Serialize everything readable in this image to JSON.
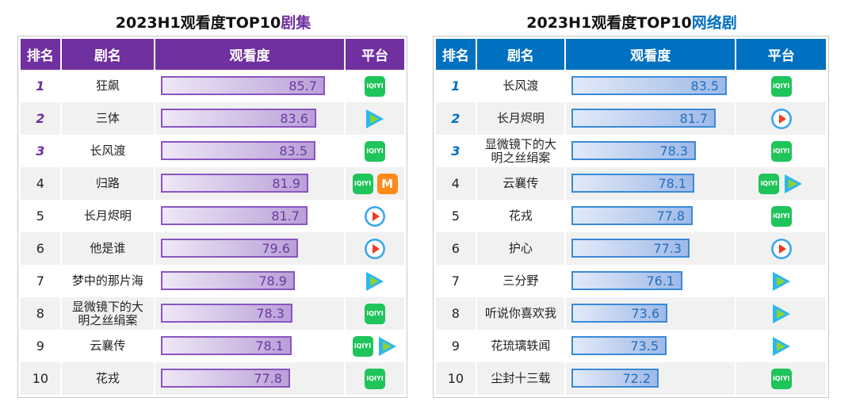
{
  "chart_data": [
    {
      "type": "table",
      "title_prefix": "2023H1观看度TOP10",
      "title_highlight": "剧集",
      "accent": "#7030a0",
      "headers": [
        "排名",
        "剧名",
        "观看度",
        "平台"
      ],
      "rows": [
        {
          "rank": "1",
          "name": "狂飙",
          "score": 85.7,
          "platforms": [
            "iqiyi"
          ]
        },
        {
          "rank": "2",
          "name": "三体",
          "score": 83.6,
          "platforms": [
            "tencent"
          ]
        },
        {
          "rank": "3",
          "name": "长风渡",
          "score": 83.5,
          "platforms": [
            "iqiyi"
          ]
        },
        {
          "rank": "4",
          "name": "归路",
          "score": 81.9,
          "platforms": [
            "iqiyi",
            "mango"
          ]
        },
        {
          "rank": "5",
          "name": "长月烬明",
          "score": 81.7,
          "platforms": [
            "youku"
          ]
        },
        {
          "rank": "6",
          "name": "他是谁",
          "score": 79.6,
          "platforms": [
            "youku"
          ]
        },
        {
          "rank": "7",
          "name": "梦中的那片海",
          "score": 78.9,
          "platforms": [
            "tencent"
          ]
        },
        {
          "rank": "8",
          "name": "显微镜下的大明之丝绢案",
          "score": 78.3,
          "platforms": [
            "iqiyi"
          ]
        },
        {
          "rank": "9",
          "name": "云襄传",
          "score": 78.1,
          "platforms": [
            "iqiyi",
            "tencent"
          ]
        },
        {
          "rank": "10",
          "name": "花戎",
          "score": 77.8,
          "platforms": [
            "iqiyi"
          ]
        }
      ]
    },
    {
      "type": "table",
      "title_prefix": "2023H1观看度TOP10",
      "title_highlight": "网络剧",
      "accent": "#0070c0",
      "headers": [
        "排名",
        "剧名",
        "观看度",
        "平台"
      ],
      "rows": [
        {
          "rank": "1",
          "name": "长风渡",
          "score": 83.5,
          "platforms": [
            "iqiyi"
          ]
        },
        {
          "rank": "2",
          "name": "长月烬明",
          "score": 81.7,
          "platforms": [
            "youku"
          ]
        },
        {
          "rank": "3",
          "name": "显微镜下的大明之丝绢案",
          "score": 78.3,
          "platforms": [
            "iqiyi"
          ]
        },
        {
          "rank": "4",
          "name": "云襄传",
          "score": 78.1,
          "platforms": [
            "iqiyi",
            "tencent"
          ]
        },
        {
          "rank": "5",
          "name": "花戎",
          "score": 77.8,
          "platforms": [
            "iqiyi"
          ]
        },
        {
          "rank": "6",
          "name": "护心",
          "score": 77.3,
          "platforms": [
            "youku"
          ]
        },
        {
          "rank": "7",
          "name": "三分野",
          "score": 76.1,
          "platforms": [
            "tencent"
          ]
        },
        {
          "rank": "8",
          "name": "听说你喜欢我",
          "score": 73.6,
          "platforms": [
            "tencent"
          ]
        },
        {
          "rank": "9",
          "name": "花琉璃轶闻",
          "score": 73.5,
          "platforms": [
            "tencent"
          ]
        },
        {
          "rank": "10",
          "name": "尘封十三载",
          "score": 72.2,
          "platforms": [
            "iqiyi"
          ]
        }
      ]
    }
  ],
  "icon_labels": {
    "iqiyi": "iQIYI",
    "mango": "M"
  }
}
